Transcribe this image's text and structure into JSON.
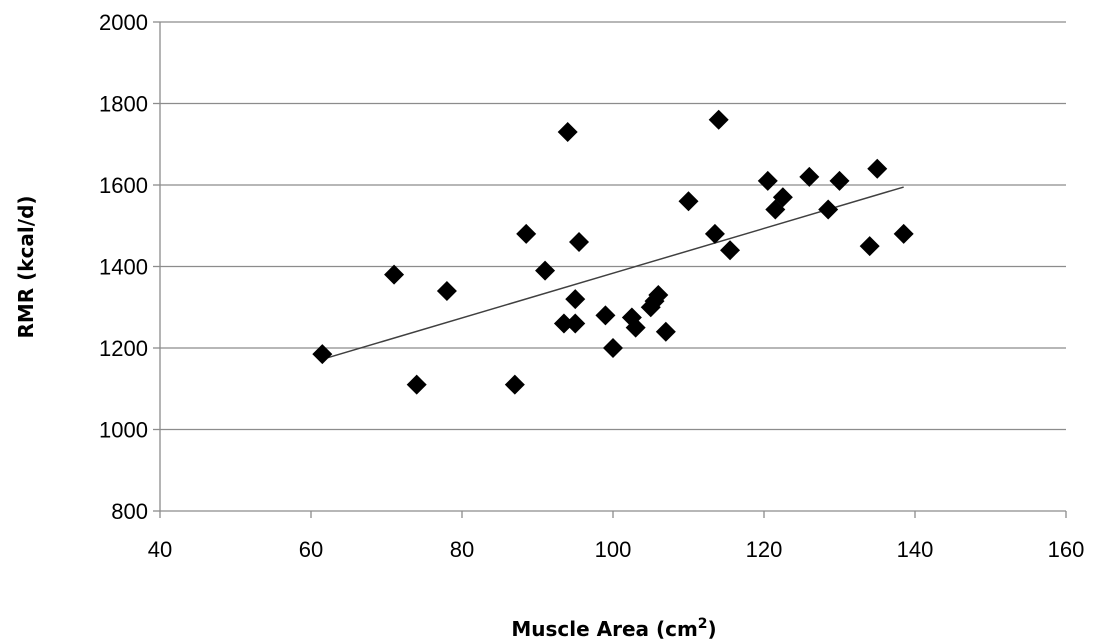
{
  "chart_data": {
    "type": "scatter",
    "xlabel": "Muscle Area (cm",
    "xlabel_sup": "2",
    "xlabel_close": ")",
    "ylabel": "RMR (kcal/d)",
    "xlim": [
      40,
      160
    ],
    "ylim": [
      800,
      2000
    ],
    "x_ticks": [
      "40",
      "60",
      "80",
      "100",
      "120",
      "140",
      "160"
    ],
    "y_ticks": [
      "800",
      "1000",
      "1200",
      "1400",
      "1600",
      "1800",
      "2000"
    ],
    "grid": "horizontal",
    "marker": "diamond",
    "marker_color": "#000000",
    "points": [
      {
        "x": 61.5,
        "y": 1185
      },
      {
        "x": 71,
        "y": 1380
      },
      {
        "x": 74,
        "y": 1110
      },
      {
        "x": 78,
        "y": 1340
      },
      {
        "x": 87,
        "y": 1110
      },
      {
        "x": 88.5,
        "y": 1480
      },
      {
        "x": 91,
        "y": 1390
      },
      {
        "x": 93.5,
        "y": 1260
      },
      {
        "x": 94,
        "y": 1730
      },
      {
        "x": 95,
        "y": 1320
      },
      {
        "x": 95,
        "y": 1260
      },
      {
        "x": 95.5,
        "y": 1460
      },
      {
        "x": 99,
        "y": 1280
      },
      {
        "x": 100,
        "y": 1200
      },
      {
        "x": 102.5,
        "y": 1275
      },
      {
        "x": 103,
        "y": 1250
      },
      {
        "x": 105,
        "y": 1300
      },
      {
        "x": 105.5,
        "y": 1315
      },
      {
        "x": 106,
        "y": 1330
      },
      {
        "x": 107,
        "y": 1240
      },
      {
        "x": 110,
        "y": 1560
      },
      {
        "x": 113.5,
        "y": 1480
      },
      {
        "x": 114,
        "y": 1760
      },
      {
        "x": 115.5,
        "y": 1440
      },
      {
        "x": 120.5,
        "y": 1610
      },
      {
        "x": 121.5,
        "y": 1540
      },
      {
        "x": 122.5,
        "y": 1570
      },
      {
        "x": 126,
        "y": 1620
      },
      {
        "x": 128.5,
        "y": 1540
      },
      {
        "x": 130,
        "y": 1610
      },
      {
        "x": 134,
        "y": 1450
      },
      {
        "x": 135,
        "y": 1640
      },
      {
        "x": 138.5,
        "y": 1480
      }
    ],
    "trendline": {
      "type": "linear",
      "x": [
        62,
        138.5
      ],
      "y": [
        1175,
        1595
      ],
      "color": "#404040"
    }
  }
}
